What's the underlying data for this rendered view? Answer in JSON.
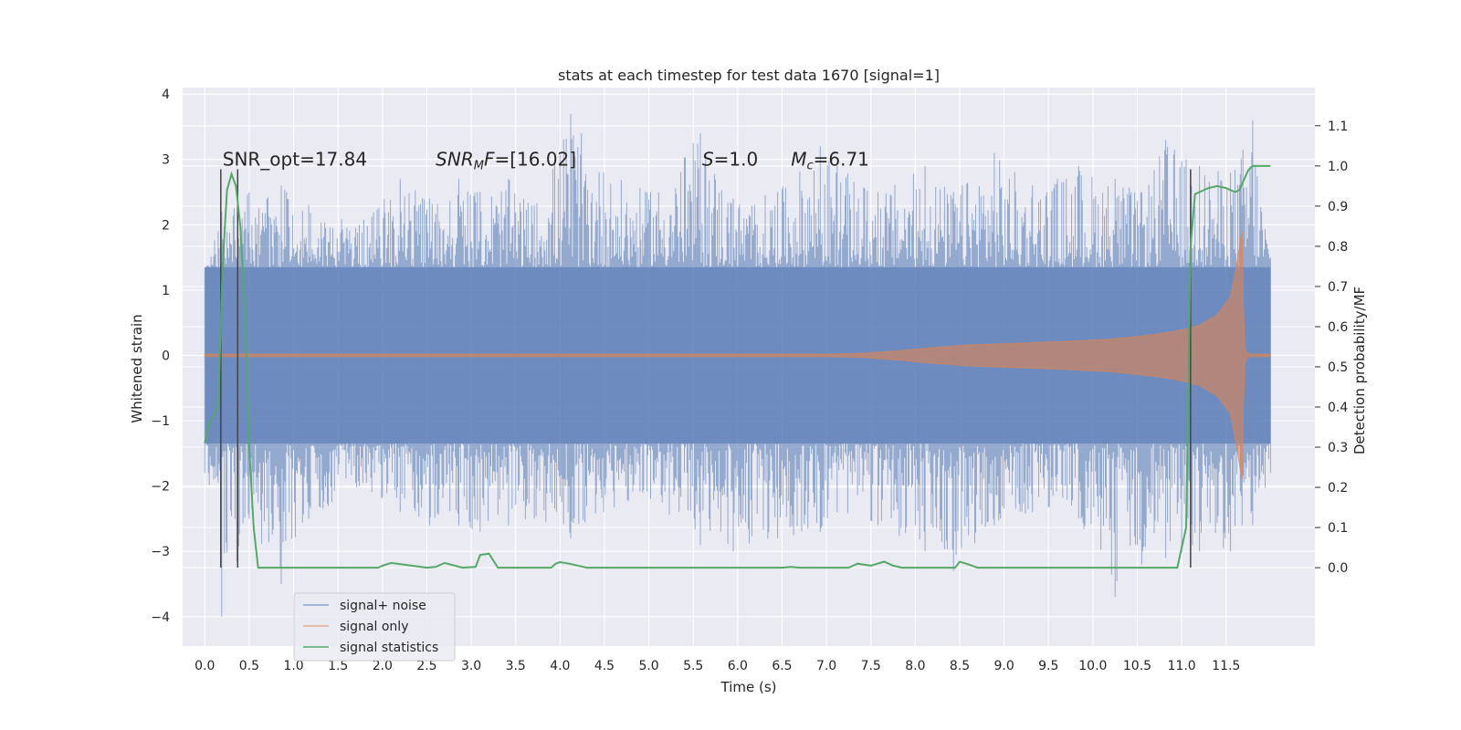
{
  "chart_data": {
    "type": "line",
    "title": "stats at each timestep for test data 1670 [signal=1]",
    "xlabel": "Time (s)",
    "ylabel": "Whitened strain",
    "y2label": "Detection probability/MF",
    "xlim": [
      -0.25,
      12.5
    ],
    "ylim": [
      -4.45,
      4.1
    ],
    "y2lim": [
      -0.195,
      1.195
    ],
    "xticks": [
      0.0,
      0.5,
      1.0,
      1.5,
      2.0,
      2.5,
      3.0,
      3.5,
      4.0,
      4.5,
      5.0,
      5.5,
      6.0,
      6.5,
      7.0,
      7.5,
      8.0,
      8.5,
      9.0,
      9.5,
      10.0,
      10.5,
      11.0,
      11.5
    ],
    "xtick_labels": [
      "0.0",
      "0.5",
      "1.0",
      "1.5",
      "2.0",
      "2.5",
      "3.0",
      "3.5",
      "4.0",
      "4.5",
      "5.0",
      "5.5",
      "6.0",
      "6.5",
      "7.0",
      "7.5",
      "8.0",
      "8.5",
      "9.0",
      "9.5",
      "10.0",
      "10.5",
      "11.0",
      "11.5"
    ],
    "yticks": [
      -4,
      -3,
      -2,
      -1,
      0,
      1,
      2,
      3,
      4
    ],
    "ytick_labels": [
      "−4",
      "−3",
      "−2",
      "−1",
      "0",
      "1",
      "2",
      "3",
      "4"
    ],
    "y2ticks": [
      0.0,
      0.1,
      0.2,
      0.3,
      0.4,
      0.5,
      0.6,
      0.7,
      0.8,
      0.9,
      1.0,
      1.1
    ],
    "y2tick_labels": [
      "0.0",
      "0.1",
      "0.2",
      "0.3",
      "0.4",
      "0.5",
      "0.6",
      "0.7",
      "0.8",
      "0.9",
      "1.0",
      "1.1"
    ],
    "grid": true,
    "legend_position": "lower-left",
    "colors": {
      "background": "#eaeaf2",
      "grid": "#ffffff",
      "noise": "#4c72b0",
      "signal": "#dd8452",
      "stats": "#55a868",
      "vlines": "#444444"
    },
    "series": [
      {
        "name": "signal+ noise",
        "color": "#4c72b0",
        "time_range": [
          0.0,
          12.0
        ],
        "core_band": [
          -1.35,
          1.35
        ],
        "x": [
          0.0,
          0.19,
          0.5,
          0.86,
          1.17,
          1.74,
          2.2,
          2.53,
          2.86,
          3.1,
          3.42,
          3.71,
          4.12,
          4.49,
          5.02,
          5.58,
          5.95,
          6.45,
          6.93,
          7.12,
          7.58,
          8.11,
          8.43,
          8.89,
          9.32,
          9.84,
          10.25,
          10.55,
          10.82,
          11.2,
          11.55,
          11.8,
          12.0
        ],
        "high": [
          1.3,
          2.2,
          2.5,
          2.6,
          2.3,
          2.0,
          2.7,
          2.4,
          2.7,
          2.5,
          2.7,
          2.3,
          3.7,
          2.8,
          2.5,
          3.4,
          2.4,
          2.5,
          3.2,
          2.9,
          2.5,
          2.9,
          2.5,
          3.1,
          2.6,
          2.9,
          2.7,
          2.5,
          3.3,
          2.9,
          2.8,
          3.6,
          1.5
        ],
        "low": [
          -1.8,
          -4.0,
          -2.5,
          -3.5,
          -2.5,
          -2.0,
          -2.4,
          -2.6,
          -2.6,
          -2.7,
          -2.6,
          -2.5,
          -2.8,
          -2.4,
          -2.2,
          -2.9,
          -3.0,
          -2.8,
          -2.7,
          -2.4,
          -2.6,
          -3.0,
          -3.3,
          -2.6,
          -2.4,
          -2.5,
          -3.7,
          -3.2,
          -3.1,
          -3.0,
          -3.0,
          -2.6,
          -1.8
        ]
      },
      {
        "name": "signal only",
        "color": "#dd8452",
        "x": [
          0.0,
          7.0,
          7.4,
          7.8,
          8.2,
          8.6,
          9.0,
          9.4,
          9.8,
          10.2,
          10.5,
          10.8,
          11.0,
          11.2,
          11.4,
          11.55,
          11.62,
          11.66,
          11.68,
          11.69,
          11.71,
          11.75,
          12.0
        ],
        "envelope": [
          0.02,
          0.02,
          0.03,
          0.07,
          0.12,
          0.16,
          0.18,
          0.2,
          0.22,
          0.25,
          0.29,
          0.34,
          0.39,
          0.46,
          0.62,
          0.9,
          1.4,
          1.75,
          1.9,
          1.0,
          0.1,
          0.02,
          0.02
        ]
      },
      {
        "name": "signal statistics",
        "color": "#55a868",
        "axis": "right",
        "x": [
          0.0,
          0.05,
          0.1,
          0.15,
          0.2,
          0.25,
          0.3,
          0.35,
          0.4,
          0.45,
          0.5,
          0.55,
          0.6,
          0.7,
          1.0,
          1.5,
          1.8,
          1.95,
          2.0,
          2.1,
          2.5,
          2.6,
          2.7,
          2.9,
          3.05,
          3.1,
          3.2,
          3.3,
          3.5,
          3.9,
          3.95,
          4.0,
          4.1,
          4.3,
          5.0,
          6.0,
          6.5,
          6.6,
          6.7,
          7.0,
          7.25,
          7.35,
          7.5,
          7.65,
          7.75,
          7.85,
          8.0,
          8.3,
          8.45,
          8.5,
          8.6,
          8.7,
          9.0,
          9.5,
          10.0,
          10.5,
          10.8,
          10.95,
          11.05,
          11.1,
          11.15,
          11.2,
          11.3,
          11.4,
          11.5,
          11.6,
          11.65,
          11.75,
          11.8,
          12.0
        ],
        "y": [
          0.31,
          0.36,
          0.38,
          0.4,
          0.75,
          0.94,
          0.98,
          0.95,
          0.85,
          0.65,
          0.3,
          0.1,
          0.0,
          0.0,
          0.0,
          0.0,
          0.0,
          0.0,
          0.005,
          0.012,
          0.0,
          0.002,
          0.012,
          0.0,
          0.002,
          0.032,
          0.035,
          0.0,
          0.0,
          0.0,
          0.01,
          0.014,
          0.01,
          0.0,
          0.0,
          0.0,
          0.0,
          0.002,
          0.0,
          0.0,
          0.0,
          0.01,
          0.005,
          0.015,
          0.005,
          0.0,
          0.0,
          0.0,
          0.0,
          0.015,
          0.008,
          0.0,
          0.0,
          0.0,
          0.0,
          0.0,
          0.0,
          0.0,
          0.1,
          0.8,
          0.93,
          0.935,
          0.945,
          0.95,
          0.945,
          0.935,
          0.94,
          0.99,
          1.0,
          1.0
        ]
      }
    ],
    "vertical_lines": [
      {
        "x": 0.18,
        "ymin": -3.25,
        "ymax": 2.85
      },
      {
        "x": 0.37,
        "ymin": -3.25,
        "ymax": 2.85
      },
      {
        "x": 11.1,
        "ymin": -3.25,
        "ymax": 2.85
      }
    ],
    "annotations": [
      {
        "id": "snr-opt",
        "x": 0.2,
        "y": 3.0,
        "parts": [
          {
            "t": "SNR_opt=17.84"
          }
        ]
      },
      {
        "id": "snr-mf",
        "x": 2.6,
        "y": 3.0,
        "parts": [
          {
            "t": "SNR",
            "i": true
          },
          {
            "t": "M",
            "i": true,
            "sub": true
          },
          {
            "t": "F",
            "i": true
          },
          {
            "t": "=[16.02]"
          }
        ]
      },
      {
        "id": "s-value",
        "x": 5.6,
        "y": 3.0,
        "parts": [
          {
            "t": "S",
            "i": true
          },
          {
            "t": "=1.0"
          }
        ]
      },
      {
        "id": "mc-value",
        "x": 6.6,
        "y": 3.0,
        "parts": [
          {
            "t": "M",
            "i": true
          },
          {
            "t": "c",
            "i": true,
            "sub": true
          },
          {
            "t": "=6.71"
          }
        ]
      }
    ],
    "legend": [
      {
        "label": "signal+ noise",
        "color": "#4c72b0"
      },
      {
        "label": "signal only",
        "color": "#dd8452"
      },
      {
        "label": "signal statistics",
        "color": "#55a868"
      }
    ]
  }
}
